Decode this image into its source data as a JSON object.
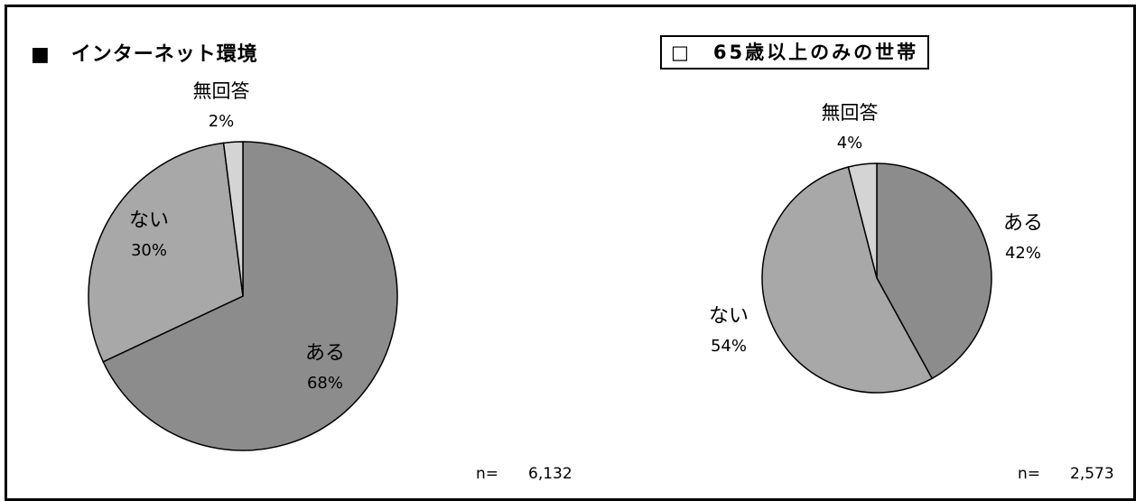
{
  "panel_left": {
    "title": "■　インターネット環境",
    "n_label": "n=",
    "n_value": "6,132"
  },
  "panel_right": {
    "title": "□　65歳以上のみの世帯",
    "n_label": "n=",
    "n_value": "2,573"
  },
  "colors": {
    "aru": "#8c8c8c",
    "nai": "#a8a8a8",
    "mukaitou": "#d4d4d4",
    "stroke": "#000000"
  },
  "chart_data": [
    {
      "type": "pie",
      "title": "■　インターネット環境",
      "categories": [
        "ある",
        "ない",
        "無回答"
      ],
      "values": [
        68,
        30,
        2
      ],
      "value_labels": [
        "68%",
        "30%",
        "2%"
      ],
      "n": "6,132",
      "legend": "none"
    },
    {
      "type": "pie",
      "title": "□　65歳以上のみの世帯",
      "categories": [
        "ある",
        "ない",
        "無回答"
      ],
      "values": [
        42,
        54,
        4
      ],
      "value_labels": [
        "42%",
        "54%",
        "4%"
      ],
      "n": "2,573",
      "legend": "none"
    }
  ]
}
